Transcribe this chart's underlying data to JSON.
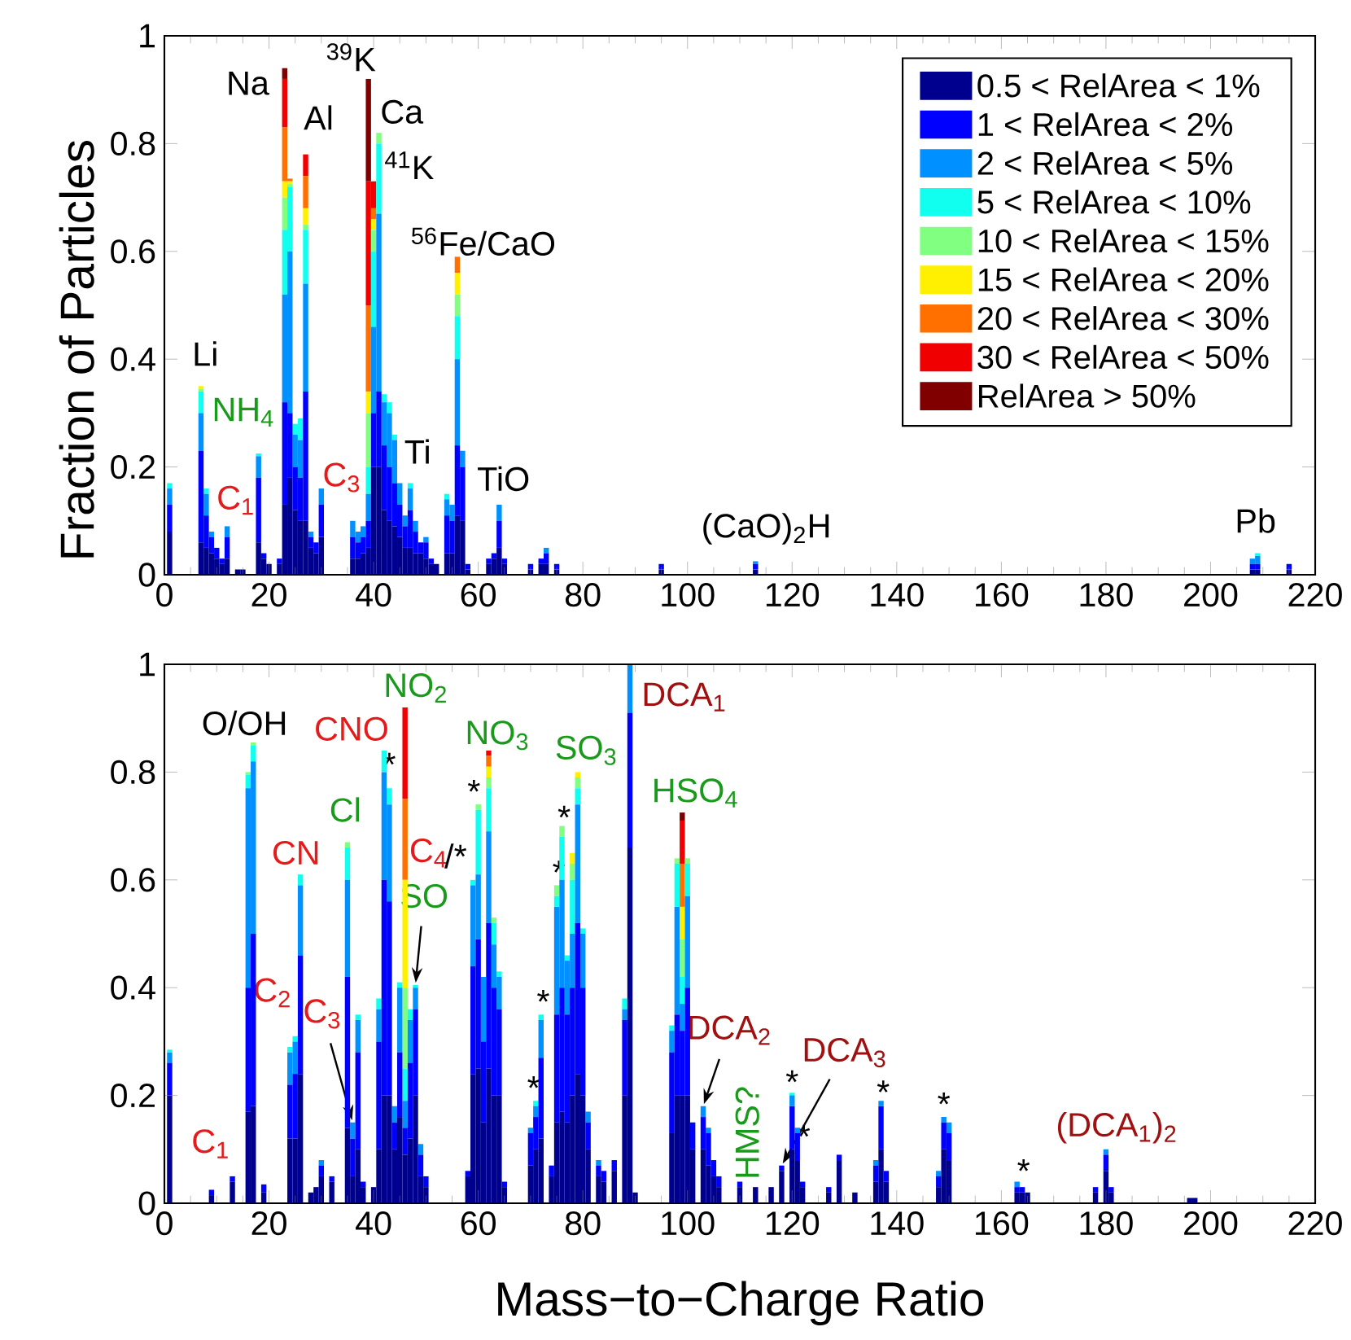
{
  "chart_data": [
    {
      "type": "bar",
      "stacked": true,
      "legend": "top right",
      "x": [
        1,
        7,
        8,
        9,
        10,
        11,
        12,
        14,
        15,
        18,
        19,
        20,
        22,
        23,
        24,
        25,
        26,
        27,
        28,
        29,
        30,
        36,
        37,
        38,
        39,
        40,
        41,
        42,
        43,
        44,
        45,
        46,
        47,
        48,
        49,
        50,
        51,
        52,
        54,
        55,
        56,
        57,
        58,
        62,
        63,
        64,
        65,
        70,
        72,
        73,
        75,
        95,
        113,
        208,
        209,
        215
      ],
      "xlim": [
        0,
        220
      ],
      "ylim": [
        0,
        1
      ],
      "xticks": [
        0,
        20,
        40,
        60,
        80,
        100,
        120,
        140,
        160,
        180,
        200,
        220
      ],
      "yticks": [
        0,
        0.2,
        0.4,
        0.6,
        0.8,
        1
      ],
      "series": [
        {
          "name": "0.5 < RelArea < 1%",
          "color": "#00008f",
          "values": [
            0.08,
            0.06,
            0.05,
            0.04,
            0.03,
            0.02,
            0.03,
            0.01,
            0.01,
            0.06,
            0.03,
            0.02,
            0.02,
            0.13,
            0.18,
            0.12,
            0.1,
            0.1,
            0.05,
            0.04,
            0.07,
            0.03,
            0.03,
            0.04,
            0.05,
            0.2,
            0.2,
            0.12,
            0.1,
            0.09,
            0.07,
            0.05,
            0.05,
            0.04,
            0.04,
            0.03,
            0.02,
            0.02,
            0.04,
            0.04,
            0.11,
            0.1,
            0.01,
            0.02,
            0.03,
            0.05,
            0.02,
            0.01,
            0.02,
            0.02,
            0.01,
            0.01,
            0.01,
            0.01,
            0.01,
            0.01
          ]
        },
        {
          "name": "1 < RelArea < 2%",
          "color": "#0000ff",
          "values": [
            0.05,
            0.17,
            0.06,
            0.03,
            0.02,
            0.01,
            0.04,
            0,
            0,
            0.12,
            0.01,
            0,
            0.01,
            0.19,
            0.12,
            0.08,
            0.08,
            0.24,
            0.02,
            0.02,
            0.06,
            0.04,
            0.03,
            0.03,
            0.05,
            0.1,
            0.14,
            0.12,
            0.1,
            0.08,
            0.06,
            0.04,
            0.07,
            0.04,
            0.02,
            0.03,
            0.01,
            0,
            0.07,
            0.06,
            0.13,
            0.1,
            0.01,
            0.01,
            0.01,
            0.05,
            0.01,
            0.01,
            0.01,
            0.02,
            0.01,
            0.01,
            0.01,
            0.01,
            0.01,
            0.01
          ]
        },
        {
          "name": "2 < RelArea < 5%",
          "color": "#0090ff",
          "values": [
            0.03,
            0.07,
            0.04,
            0.01,
            0,
            0,
            0.02,
            0,
            0,
            0.04,
            0,
            0,
            0,
            0.2,
            0.3,
            0.06,
            0.07,
            0.2,
            0.01,
            0,
            0.03,
            0.03,
            0.02,
            0.02,
            0.05,
            0.16,
            0.33,
            0.08,
            0.1,
            0.08,
            0.04,
            0.02,
            0.04,
            0.02,
            0,
            0.01,
            0,
            0,
            0.03,
            0.03,
            0.16,
            0.03,
            0,
            0,
            0,
            0.03,
            0,
            0,
            0,
            0.01,
            0,
            0,
            0.005,
            0.01,
            0.015,
            0
          ]
        },
        {
          "name": "5 < RelArea < 10%",
          "color": "#10ffef",
          "values": [
            0.01,
            0.04,
            0.01,
            0,
            0,
            0,
            0,
            0,
            0,
            0.005,
            0,
            0,
            0,
            0.12,
            0.12,
            0.02,
            0.04,
            0.1,
            0,
            0,
            0,
            0,
            0,
            0,
            0.05,
            0.14,
            0.13,
            0.015,
            0.02,
            0.01,
            0,
            0,
            0.01,
            0,
            0,
            0,
            0,
            0,
            0.01,
            0,
            0.08,
            0,
            0,
            0,
            0,
            0,
            0,
            0,
            0,
            0,
            0,
            0,
            0,
            0,
            0.005,
            0
          ]
        },
        {
          "name": "10 < RelArea < 15%",
          "color": "#80ff80",
          "values": [
            0,
            0.005,
            0,
            0,
            0,
            0,
            0,
            0,
            0,
            0,
            0,
            0,
            0,
            0.06,
            0.005,
            0,
            0,
            0.01,
            0,
            0,
            0,
            0,
            0,
            0,
            0.1,
            0.04,
            0.02,
            0,
            0,
            0,
            0,
            0,
            0,
            0,
            0,
            0,
            0,
            0,
            0,
            0,
            0.04,
            0,
            0,
            0,
            0,
            0,
            0,
            0,
            0,
            0,
            0,
            0,
            0,
            0,
            0,
            0
          ]
        },
        {
          "name": "15 < RelArea < 20%",
          "color": "#ffef00",
          "values": [
            0,
            0.005,
            0,
            0,
            0,
            0,
            0,
            0,
            0,
            0,
            0,
            0,
            0,
            0.03,
            0.005,
            0,
            0,
            0.03,
            0,
            0,
            0,
            0,
            0,
            0,
            0.04,
            0.02,
            0,
            0,
            0,
            0,
            0,
            0,
            0,
            0,
            0,
            0,
            0,
            0,
            0,
            0,
            0.04,
            0,
            0,
            0,
            0,
            0,
            0,
            0,
            0,
            0,
            0,
            0,
            0,
            0,
            0,
            0
          ]
        },
        {
          "name": "20 < RelArea < 30%",
          "color": "#ff7000",
          "values": [
            0,
            0,
            0,
            0,
            0,
            0,
            0,
            0,
            0,
            0,
            0,
            0,
            0,
            0.1,
            0.005,
            0,
            0,
            0.06,
            0,
            0,
            0,
            0,
            0,
            0,
            0.16,
            0.02,
            0,
            0,
            0,
            0,
            0,
            0,
            0,
            0,
            0,
            0,
            0,
            0,
            0,
            0,
            0.03,
            0,
            0,
            0,
            0,
            0,
            0,
            0,
            0,
            0,
            0,
            0,
            0,
            0,
            0,
            0
          ]
        },
        {
          "name": "30 < RelArea < 50%",
          "color": "#f00000",
          "values": [
            0,
            0,
            0,
            0,
            0,
            0,
            0,
            0,
            0,
            0,
            0,
            0,
            0,
            0.09,
            0,
            0,
            0,
            0.04,
            0,
            0,
            0,
            0,
            0,
            0,
            0.23,
            0.05,
            0,
            0,
            0,
            0,
            0,
            0,
            0,
            0,
            0,
            0,
            0,
            0,
            0,
            0,
            0,
            0,
            0,
            0,
            0,
            0,
            0,
            0,
            0,
            0,
            0,
            0,
            0,
            0,
            0,
            0
          ]
        },
        {
          "name": "RelArea > 50%",
          "color": "#800000",
          "values": [
            0,
            0,
            0,
            0,
            0,
            0,
            0,
            0,
            0,
            0,
            0,
            0,
            0,
            0.02,
            0,
            0,
            0,
            0,
            0,
            0,
            0,
            0,
            0,
            0,
            0.19,
            0,
            0,
            0,
            0,
            0,
            0,
            0,
            0,
            0,
            0,
            0,
            0,
            0,
            0,
            0,
            0,
            0,
            0,
            0,
            0,
            0,
            0,
            0,
            0,
            0,
            0,
            0,
            0,
            0,
            0,
            0
          ]
        }
      ],
      "annotations": [
        {
          "text": "Li",
          "x": 7,
          "y": 0.35
        },
        {
          "text": "NH$_{4}$",
          "x": 18,
          "y": 0.225
        },
        {
          "text": "C$_{1}$",
          "x": 12,
          "y": 0.09
        },
        {
          "text": "Na",
          "x": 23,
          "y": 0.94
        },
        {
          "text": "Al",
          "x": 27,
          "y": 0.78
        },
        {
          "text": "$^{39}$K",
          "x": 39,
          "y": 0.92
        },
        {
          "text": "Ca",
          "x": 40,
          "y": 0.73
        },
        {
          "text": "$^{41}$K",
          "x": 41,
          "y": 0.82
        },
        {
          "text": "C$_{3}$",
          "x": 36,
          "y": 0.1
        },
        {
          "text": "$^{56}$Fe/CaO",
          "x": 56,
          "y": 0.59
        },
        {
          "text": "Ti",
          "x": 48,
          "y": 0.1
        },
        {
          "text": "TiO",
          "x": 64,
          "y": 0.13
        },
        {
          "text": "(CaO)$_{2}$H",
          "x": 113,
          "y": 0.025
        },
        {
          "text": "Pb",
          "x": 209,
          "y": 0.04
        }
      ]
    },
    {
      "type": "bar",
      "stacked": true,
      "xlabel": "Mass−to−Charge Ratio",
      "ylabel": "Fraction of Particles",
      "x": [
        1,
        9,
        13,
        16,
        17,
        19,
        24,
        25,
        26,
        28,
        29,
        30,
        32,
        35,
        36,
        37,
        38,
        40,
        41,
        42,
        43,
        44,
        45,
        46,
        47,
        48,
        49,
        50,
        58,
        59,
        60,
        61,
        62,
        63,
        64,
        65,
        70,
        71,
        72,
        74,
        75,
        76,
        77,
        78,
        79,
        80,
        81,
        83,
        84,
        86,
        88,
        89,
        90,
        97,
        98,
        99,
        100,
        101,
        103,
        104,
        105,
        106,
        110,
        113,
        116,
        118,
        120,
        121,
        122,
        127,
        129,
        132,
        136,
        137,
        138,
        148,
        149,
        150,
        163,
        164,
        165,
        178,
        180,
        181,
        196,
        197
      ],
      "xlim": [
        0,
        220
      ],
      "ylim": [
        0,
        1
      ],
      "xticks": [
        0,
        20,
        40,
        60,
        80,
        100,
        120,
        140,
        160,
        180,
        200,
        220
      ],
      "yticks": [
        0,
        0.2,
        0.4,
        0.6,
        0.8,
        1
      ],
      "series": [
        {
          "color": "#00008f",
          "values": [
            0.2,
            0.015,
            0.04,
            0.17,
            0.18,
            0.02,
            0.12,
            0.12,
            0.24,
            0.02,
            0.03,
            0.05,
            0.04,
            0.14,
            0.05,
            0.1,
            0.03,
            0.03,
            0.1,
            0.2,
            0.2,
            0.1,
            0.16,
            0.09,
            0.12,
            0.2,
            0.05,
            0.03,
            0.05,
            0.24,
            0.25,
            0.15,
            0.25,
            0.2,
            0.2,
            0.03,
            0.07,
            0.1,
            0.12,
            0.05,
            0.15,
            0.17,
            0.15,
            0.2,
            0.24,
            0.2,
            0.1,
            0.05,
            0.04,
            0.06,
            0.2,
            0.66,
            0.02,
            0.13,
            0.2,
            0.2,
            0.2,
            0.1,
            0.1,
            0.07,
            0.05,
            0.03,
            0.03,
            0.03,
            0.03,
            0.06,
            0.1,
            0.08,
            0.03,
            0.02,
            0.08,
            0.02,
            0.04,
            0.1,
            0.04,
            0.03,
            0.1,
            0.08,
            0.02,
            0.02,
            0.02,
            0.02,
            0.06,
            0.02,
            0.01,
            0.01
          ]
        },
        {
          "color": "#0000ff",
          "values": [
            0.06,
            0.01,
            0.01,
            0.23,
            0.32,
            0.015,
            0.1,
            0.12,
            0.22,
            0,
            0,
            0.02,
            0.01,
            0.28,
            0.07,
            0.18,
            0.01,
            0,
            0.2,
            0.4,
            0.36,
            0.05,
            0.12,
            0.05,
            0.14,
            0.16,
            0.04,
            0.02,
            0.01,
            0.2,
            0.24,
            0.15,
            0.27,
            0.2,
            0.16,
            0.01,
            0.06,
            0.06,
            0.15,
            0.02,
            0.2,
            0.23,
            0.2,
            0.2,
            0.28,
            0.2,
            0.05,
            0.02,
            0.02,
            0.02,
            0.14,
            0.25,
            0,
            0.15,
            0.15,
            0.12,
            0.2,
            0.05,
            0.06,
            0.06,
            0.03,
            0.02,
            0.01,
            0,
            0,
            0.01,
            0.08,
            0.05,
            0.01,
            0.01,
            0.01,
            0,
            0.03,
            0.08,
            0.02,
            0.02,
            0.05,
            0.05,
            0.01,
            0.01,
            0,
            0.01,
            0.03,
            0.01,
            0,
            0
          ]
        },
        {
          "color": "#0090ff",
          "values": [
            0.02,
            0,
            0,
            0.37,
            0.32,
            0,
            0.06,
            0.06,
            0.13,
            0,
            0,
            0.01,
            0,
            0.18,
            0.03,
            0.06,
            0,
            0,
            0.06,
            0.2,
            0.18,
            0.03,
            0.12,
            0.05,
            0.08,
            0.04,
            0.02,
            0,
            0,
            0.15,
            0.12,
            0.12,
            0.17,
            0.08,
            0.06,
            0,
            0.01,
            0.02,
            0.07,
            0,
            0.2,
            0.2,
            0.1,
            0.1,
            0.22,
            0.1,
            0.02,
            0.01,
            0,
            0,
            0.02,
            0.09,
            0,
            0.04,
            0.2,
            0.05,
            0.17,
            0,
            0.02,
            0.01,
            0,
            0,
            0,
            0,
            0,
            0,
            0.02,
            0.01,
            0,
            0,
            0,
            0,
            0.01,
            0.01,
            0,
            0.01,
            0.01,
            0.02,
            0.01,
            0,
            0,
            0,
            0.01,
            0,
            0,
            0
          ]
        },
        {
          "color": "#10ffef",
          "values": [
            0.005,
            0,
            0,
            0.025,
            0.03,
            0,
            0.01,
            0.01,
            0.02,
            0,
            0,
            0,
            0,
            0.06,
            0,
            0.01,
            0,
            0,
            0.02,
            0.04,
            0.03,
            0,
            0.01,
            0.06,
            0.02,
            0.005,
            0,
            0,
            0,
            0.01,
            0.12,
            0,
            0.08,
            0.04,
            0.01,
            0,
            0,
            0.01,
            0.01,
            0,
            0.02,
            0.08,
            0.01,
            0.1,
            0.03,
            0.01,
            0,
            0,
            0,
            0,
            0.02,
            0,
            0,
            0.01,
            0.08,
            0.05,
            0.06,
            0,
            0,
            0,
            0,
            0,
            0,
            0,
            0,
            0,
            0.005,
            0,
            0,
            0,
            0,
            0,
            0,
            0,
            0,
            0,
            0,
            0,
            0,
            0,
            0,
            0,
            0,
            0,
            0,
            0
          ]
        },
        {
          "color": "#80ff80",
          "values": [
            0,
            0,
            0,
            0.005,
            0.005,
            0,
            0,
            0,
            0,
            0,
            0,
            0,
            0,
            0.01,
            0,
            0,
            0,
            0,
            0,
            0,
            0,
            0,
            0,
            0.15,
            0,
            0,
            0,
            0,
            0,
            0,
            0.01,
            0,
            0.02,
            0.01,
            0,
            0,
            0,
            0,
            0,
            0,
            0.02,
            0.02,
            0,
            0.03,
            0.02,
            0,
            0,
            0,
            0,
            0,
            0,
            0,
            0,
            0,
            0.01,
            0.07,
            0.01,
            0,
            0,
            0,
            0,
            0,
            0,
            0,
            0,
            0,
            0,
            0,
            0,
            0,
            0,
            0,
            0,
            0,
            0,
            0,
            0,
            0,
            0,
            0,
            0,
            0,
            0,
            0,
            0,
            0
          ]
        },
        {
          "color": "#ffef00",
          "values": [
            0,
            0,
            0,
            0,
            0,
            0,
            0,
            0,
            0,
            0,
            0,
            0,
            0,
            0,
            0,
            0,
            0,
            0,
            0,
            0,
            0,
            0,
            0,
            0.2,
            0,
            0,
            0,
            0,
            0,
            0,
            0,
            0,
            0.02,
            0,
            0,
            0,
            0,
            0,
            0,
            0,
            0,
            0,
            0,
            0.02,
            0.01,
            0,
            0,
            0,
            0,
            0,
            0,
            0,
            0,
            0,
            0,
            0.06,
            0,
            0,
            0,
            0,
            0,
            0,
            0,
            0,
            0,
            0,
            0,
            0,
            0,
            0,
            0,
            0,
            0,
            0,
            0,
            0,
            0,
            0,
            0,
            0,
            0,
            0,
            0,
            0,
            0,
            0
          ]
        },
        {
          "color": "#ff7000",
          "values": [
            0,
            0,
            0,
            0,
            0,
            0,
            0,
            0,
            0,
            0,
            0,
            0,
            0,
            0,
            0,
            0,
            0,
            0,
            0,
            0,
            0,
            0,
            0,
            0.15,
            0,
            0,
            0,
            0,
            0,
            0,
            0,
            0,
            0.02,
            0,
            0,
            0,
            0,
            0,
            0,
            0,
            0,
            0,
            0,
            0,
            0,
            0,
            0,
            0,
            0,
            0,
            0,
            0,
            0,
            0,
            0,
            0.08,
            0,
            0,
            0,
            0,
            0,
            0,
            0,
            0,
            0,
            0,
            0,
            0,
            0,
            0,
            0,
            0,
            0,
            0,
            0,
            0,
            0,
            0,
            0,
            0,
            0,
            0,
            0,
            0,
            0,
            0
          ]
        },
        {
          "color": "#f00000",
          "values": [
            0,
            0,
            0,
            0,
            0,
            0,
            0,
            0,
            0,
            0,
            0,
            0,
            0,
            0,
            0,
            0,
            0,
            0,
            0,
            0,
            0,
            0,
            0,
            0.17,
            0,
            0,
            0,
            0,
            0,
            0,
            0,
            0,
            0.01,
            0,
            0,
            0,
            0,
            0,
            0,
            0,
            0,
            0,
            0,
            0,
            0,
            0,
            0,
            0,
            0,
            0,
            0,
            0,
            0,
            0,
            0,
            0.08,
            0,
            0,
            0,
            0,
            0,
            0,
            0,
            0,
            0,
            0,
            0,
            0,
            0,
            0,
            0,
            0,
            0,
            0,
            0,
            0,
            0,
            0,
            0,
            0,
            0,
            0,
            0,
            0,
            0,
            0
          ]
        },
        {
          "color": "#800000",
          "values": [
            0,
            0,
            0,
            0,
            0,
            0,
            0,
            0,
            0,
            0,
            0,
            0,
            0,
            0,
            0,
            0,
            0,
            0,
            0,
            0,
            0,
            0,
            0,
            0,
            0,
            0,
            0,
            0,
            0,
            0,
            0,
            0,
            0,
            0,
            0,
            0,
            0,
            0,
            0,
            0,
            0,
            0,
            0,
            0,
            0,
            0,
            0,
            0,
            0,
            0,
            0,
            0,
            0,
            0,
            0,
            0.015,
            0,
            0,
            0,
            0,
            0,
            0,
            0,
            0,
            0,
            0,
            0,
            0,
            0,
            0,
            0,
            0,
            0,
            0,
            0,
            0,
            0,
            0,
            0,
            0,
            0,
            0,
            0,
            0,
            0,
            0
          ]
        }
      ],
      "annotations": [
        {
          "text": "C$_{1}$",
          "x": 13,
          "y": 0.05
        },
        {
          "text": "O/OH",
          "x": 17,
          "y": 0.855
        },
        {
          "text": "CNO",
          "x": 42,
          "y": 0.84
        },
        {
          "text": "NO$_{2}$",
          "x": 46,
          "y": 0.92
        },
        {
          "text": "CN",
          "x": 26,
          "y": 0.61
        },
        {
          "text": "Cl",
          "x": 35,
          "y": 0.67
        },
        {
          "text": "C$_{2}$",
          "x": 24,
          "y": 0.29
        },
        {
          "text": "C$_{3}$",
          "x": 36,
          "y": 0.15
        },
        "C$_{4}$",
        {
          "text": "/*",
          "x": 59,
          "y": 0.6
        },
        {
          "text": "SO",
          "x": 48,
          "y": 0.405
        },
        {
          "text": "NO$_{3}$",
          "x": 62,
          "y": 0.84
        },
        {
          "text": "SO$_{3}$",
          "x": 79,
          "y": 0.8
        },
        {
          "text": "DCA$_{1}$",
          "x": 89,
          "y": 1
        },
        {
          "text": "HSO$_{4}$",
          "x": 99,
          "y": 0.725
        },
        {
          "text": "DCA$_{2}$",
          "x": 103,
          "y": 0.18
        },
        {
          "text": "HMS?",
          "x": 116,
          "y": 0.03
        },
        {
          "text": "DCA$_{3}$",
          "x": 118,
          "y": 0.07
        },
        {
          "text": "(DCA$_{1}$)$_{2}$",
          "x": 180,
          "y": 0.1
        },
        {
          "text": "*",
          "x": 43,
          "y": 0.77
        },
        {
          "text": "*",
          "x": 60,
          "y": 0.74
        },
        {
          "text": "*",
          "x": 76,
          "y": 0.7
        },
        {
          "text": "*",
          "x": 75,
          "y": 0.59
        },
        {
          "text": "*",
          "x": 72,
          "y": 0.35
        },
        {
          "text": "*",
          "x": 71,
          "y": 0.19
        },
        {
          "text": "*",
          "x": 120,
          "y": 0.205
        },
        {
          "text": "*",
          "x": 121,
          "y": 0.14
        },
        {
          "text": "*",
          "x": 137,
          "y": 0.19
        },
        {
          "text": "*",
          "x": 149,
          "y": 0.16
        },
        {
          "text": "*",
          "x": 163,
          "y": 0.04
        }
      ]
    }
  ]
}
